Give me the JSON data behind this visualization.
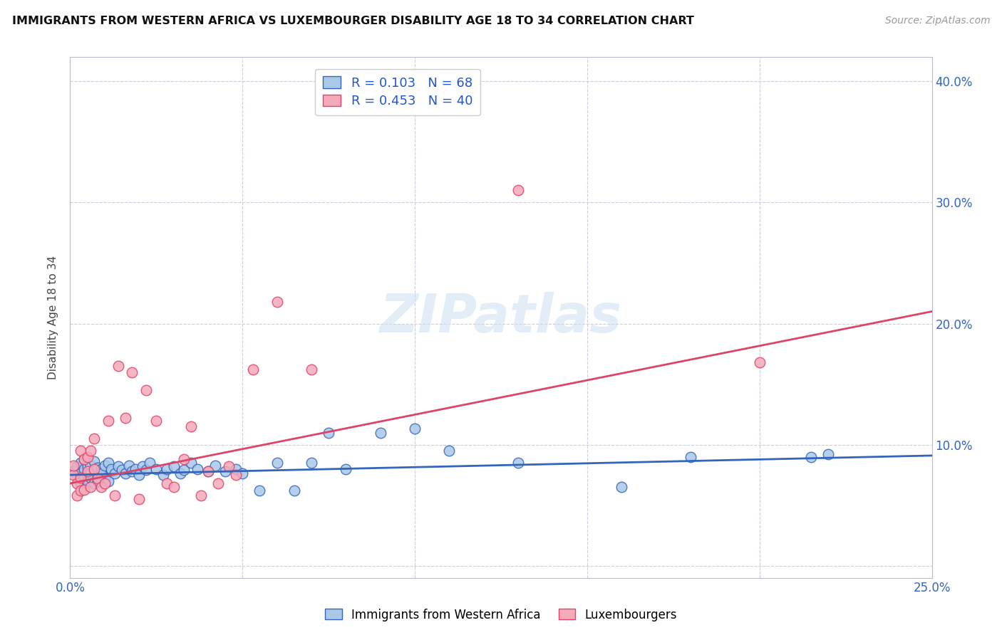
{
  "title": "IMMIGRANTS FROM WESTERN AFRICA VS LUXEMBOURGER DISABILITY AGE 18 TO 34 CORRELATION CHART",
  "source": "Source: ZipAtlas.com",
  "ylabel": "Disability Age 18 to 34",
  "xlim": [
    0.0,
    0.25
  ],
  "ylim": [
    -0.01,
    0.42
  ],
  "xticks": [
    0.0,
    0.05,
    0.1,
    0.15,
    0.2,
    0.25
  ],
  "xtick_labels": [
    "0.0%",
    "",
    "",
    "",
    "",
    "25.0%"
  ],
  "yticks": [
    0.0,
    0.1,
    0.2,
    0.3,
    0.4
  ],
  "ytick_labels": [
    "",
    "10.0%",
    "20.0%",
    "30.0%",
    "40.0%"
  ],
  "blue_R": 0.103,
  "blue_N": 68,
  "pink_R": 0.453,
  "pink_N": 40,
  "blue_color": "#aac8e8",
  "pink_color": "#f5aabb",
  "blue_line_color": "#3366bb",
  "pink_line_color": "#dd4466",
  "legend_label_blue": "Immigrants from Western Africa",
  "legend_label_pink": "Luxembourgers",
  "watermark": "ZIPatlas",
  "blue_line_x0": 0.0,
  "blue_line_y0": 0.075,
  "blue_line_x1": 0.25,
  "blue_line_y1": 0.091,
  "pink_line_x0": 0.0,
  "pink_line_y0": 0.068,
  "pink_line_x1": 0.25,
  "pink_line_y1": 0.21,
  "blue_scatter_x": [
    0.001,
    0.002,
    0.002,
    0.003,
    0.003,
    0.003,
    0.004,
    0.004,
    0.004,
    0.005,
    0.005,
    0.005,
    0.005,
    0.006,
    0.006,
    0.006,
    0.007,
    0.007,
    0.007,
    0.008,
    0.008,
    0.008,
    0.009,
    0.009,
    0.01,
    0.01,
    0.011,
    0.011,
    0.012,
    0.012,
    0.013,
    0.014,
    0.015,
    0.016,
    0.017,
    0.018,
    0.019,
    0.02,
    0.021,
    0.022,
    0.023,
    0.025,
    0.027,
    0.028,
    0.03,
    0.032,
    0.033,
    0.035,
    0.037,
    0.04,
    0.042,
    0.045,
    0.048,
    0.05,
    0.055,
    0.06,
    0.065,
    0.07,
    0.075,
    0.08,
    0.09,
    0.1,
    0.11,
    0.13,
    0.16,
    0.18,
    0.215,
    0.22
  ],
  "blue_scatter_y": [
    0.078,
    0.082,
    0.074,
    0.085,
    0.076,
    0.068,
    0.08,
    0.072,
    0.088,
    0.078,
    0.082,
    0.075,
    0.07,
    0.083,
    0.077,
    0.073,
    0.086,
    0.079,
    0.068,
    0.074,
    0.081,
    0.07,
    0.08,
    0.076,
    0.083,
    0.072,
    0.085,
    0.07,
    0.078,
    0.08,
    0.076,
    0.082,
    0.079,
    0.076,
    0.083,
    0.078,
    0.08,
    0.075,
    0.082,
    0.079,
    0.085,
    0.08,
    0.075,
    0.08,
    0.082,
    0.076,
    0.079,
    0.085,
    0.08,
    0.078,
    0.083,
    0.078,
    0.08,
    0.076,
    0.062,
    0.085,
    0.062,
    0.085,
    0.11,
    0.08,
    0.11,
    0.113,
    0.095,
    0.085,
    0.065,
    0.09,
    0.09,
    0.092
  ],
  "pink_scatter_x": [
    0.001,
    0.001,
    0.002,
    0.002,
    0.003,
    0.003,
    0.003,
    0.004,
    0.004,
    0.005,
    0.005,
    0.006,
    0.006,
    0.007,
    0.007,
    0.008,
    0.009,
    0.01,
    0.011,
    0.013,
    0.014,
    0.016,
    0.018,
    0.02,
    0.022,
    0.025,
    0.028,
    0.03,
    0.033,
    0.035,
    0.038,
    0.04,
    0.043,
    0.046,
    0.048,
    0.053,
    0.06,
    0.07,
    0.2,
    0.13
  ],
  "pink_scatter_y": [
    0.075,
    0.083,
    0.068,
    0.058,
    0.095,
    0.073,
    0.062,
    0.088,
    0.063,
    0.09,
    0.078,
    0.095,
    0.065,
    0.105,
    0.08,
    0.072,
    0.065,
    0.068,
    0.12,
    0.058,
    0.165,
    0.122,
    0.16,
    0.055,
    0.145,
    0.12,
    0.068,
    0.065,
    0.088,
    0.115,
    0.058,
    0.078,
    0.068,
    0.082,
    0.075,
    0.162,
    0.218,
    0.162,
    0.168,
    0.31
  ]
}
